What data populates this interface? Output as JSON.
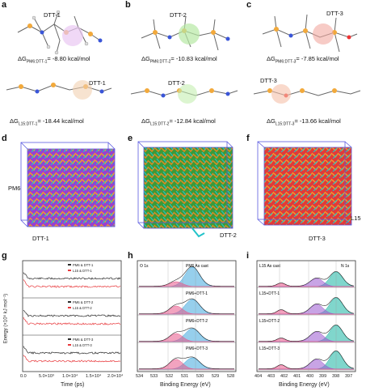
{
  "panels": {
    "a": {
      "label": "a",
      "top_callout": "DTT-1",
      "dg_top": "ΔG",
      "dg_top_sub": "PM6:DTT-1",
      "dg_top_val": "= -8.80 kcal/mol",
      "bottom_callout": "DTT-1",
      "dg_bot": "ΔG",
      "dg_bot_sub": "L15:DTT-1",
      "dg_bot_val": "= -18.44 kcal/mol"
    },
    "b": {
      "label": "b",
      "top_callout": "DTT-2",
      "dg_top": "ΔG",
      "dg_top_sub": "PM6:DTT-2",
      "dg_top_val": "= -10.83 kcal/mol",
      "bottom_callout": "DTT-2",
      "dg_bot": "ΔG",
      "dg_bot_sub": "L15:DTT-2",
      "dg_bot_val": "= -12.84 kcal/mol"
    },
    "c": {
      "label": "c",
      "top_callout": "DTT-3",
      "dg_top": "ΔG",
      "dg_top_sub": "PM6:DTT-3",
      "dg_top_val": "= -7.85 kcal/mol",
      "bottom_callout": "DTT-3",
      "dg_bot": "ΔG",
      "dg_bot_sub": "L15:DTT-3",
      "dg_bot_val": "= -13.66 kcal/mol"
    },
    "d": {
      "label": "d",
      "callout_1": "PM6",
      "callout_2": "DTT-1"
    },
    "e": {
      "label": "e",
      "callout_1": "DTT-2"
    },
    "f": {
      "label": "f",
      "callout_1": "L15",
      "callout_2": "DTT-3"
    },
    "g": {
      "label": "g",
      "ylabel": "Energy (×10⁵ kJ mol⁻¹)",
      "xlabel": "Time (ps)",
      "xticks": [
        "0.0",
        "5.0×10³",
        "1.0×10⁴",
        "1.5×10⁴",
        "2.0×10⁴"
      ],
      "legend": [
        [
          "PM6 & DTT-1",
          "L15 & DTT-1"
        ],
        [
          "PM6 & DTT-2",
          "L15 & DTT-2"
        ],
        [
          "PM6 & DTT-3",
          "L15 & DTT-3"
        ]
      ]
    },
    "h": {
      "label": "h",
      "title_left": "O 1s",
      "xlabel": "Binding Energy (eV)",
      "xticks": [
        "534",
        "533",
        "532",
        "531",
        "530",
        "529",
        "528"
      ],
      "traces": [
        "PM6 As cast",
        "PM6+DTT-1",
        "PM6+DTT-2",
        "PM6+DTT-3"
      ]
    },
    "i": {
      "label": "i",
      "title_right": "N 1s",
      "xlabel": "Binding Energy (eV)",
      "xticks": [
        "404",
        "403",
        "402",
        "401",
        "400",
        "399",
        "398",
        "397"
      ],
      "traces": [
        "L15 As cast",
        "L15+DTT-1",
        "L15+DTT-2",
        "L15+DTT-3"
      ]
    }
  },
  "colors": {
    "black_series": "#2b2b2b",
    "red_series": "#e8393c",
    "blue_peak": "#3fa7dd",
    "pink_peak": "#e8578a",
    "purple_peak": "#9b59d0",
    "teal_peak": "#18b5a3",
    "box": "#5b5be0"
  }
}
